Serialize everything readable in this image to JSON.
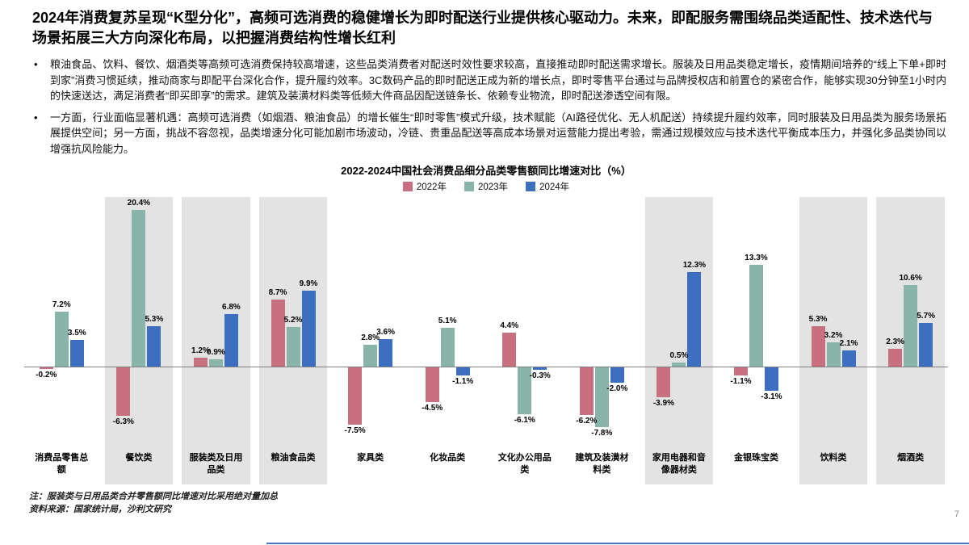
{
  "page": {
    "title": "2024年消费复苏呈现“K型分化”，高频可选消费的稳健增长为即时配送行业提供核心驱动力。未来，即配服务需围绕品类适配性、技术迭代与场景拓展三大方向深化布局，以把握消费结构性增长红利",
    "page_number": "7"
  },
  "bullets": [
    "粮油食品、饮料、餐饮、烟酒类等高频可选消费保持较高增速，这些品类消费者对配送时效性要求较高，直接推动即时配送需求增长。服装及日用品类稳定增长，疫情期间培养的“线上下单+即时到家”消费习惯延续，推动商家与即配平台深化合作，提升履约效率。3C数码产品的即时配送正成为新的增长点，即时零售平台通过与品牌授权店和前置仓的紧密合作，能够实现30分钟至1小时内的快速送达，满足消费者“即买即享”的需求。建筑及装潢材料类等低频大件商品因配送链条长、依赖专业物流，即时配送渗透空间有限。",
    "一方面，行业面临显著机遇：高频可选消费（如烟酒、粮油食品）的增长催生“即时零售”模式升级，技术赋能（AI路径优化、无人机配送）持续提升履约效率，同时服装及日用品类为服务场景拓展提供空间；另一方面，挑战不容忽视，品类增速分化可能加剧市场波动，冷链、贵重品配送等高成本场景对运营能力提出考验，需通过规模效应与技术迭代平衡成本压力，并强化多品类协同以增强抗风险能力。"
  ],
  "notes": {
    "note": "注：服装类与日用品类合并零售额同比增速对比采用绝对量加总",
    "source": "资料来源：国家统计局，沙利文研究"
  },
  "chart_data": {
    "type": "bar",
    "title": "2022-2024中国社会消费品细分品类零售额同比增速对比（%）",
    "categories": [
      "消费品零售总额",
      "餐饮类",
      "服装类及日用品类",
      "粮油食品类",
      "家具类",
      "化妆品类",
      "文化办公用品类",
      "建筑及装潢材料类",
      "家用电器和音像器材类",
      "金银珠宝类",
      "饮料类",
      "烟酒类"
    ],
    "series": [
      {
        "name": "2022年",
        "color": "#c8707f",
        "values": [
          -0.2,
          -6.3,
          1.2,
          8.7,
          -7.5,
          -4.5,
          4.4,
          -6.2,
          -3.9,
          -1.1,
          5.3,
          2.3
        ]
      },
      {
        "name": "2023年",
        "color": "#88b4a9",
        "values": [
          7.2,
          20.4,
          0.9,
          5.2,
          2.8,
          5.1,
          -6.1,
          -7.8,
          0.5,
          13.3,
          3.2,
          10.6
        ]
      },
      {
        "name": "2024年",
        "color": "#3d6fc1",
        "values": [
          3.5,
          5.3,
          6.8,
          9.9,
          3.6,
          -1.1,
          -0.3,
          -2.0,
          12.3,
          -3.1,
          2.1,
          5.7
        ]
      }
    ],
    "highlighted_categories": [
      1,
      2,
      3,
      8,
      10,
      11
    ],
    "highlight_color": "#e3e3e3",
    "ylim": [
      -10,
      22
    ],
    "grid": false,
    "legend_position": "top",
    "value_suffix": "%"
  }
}
